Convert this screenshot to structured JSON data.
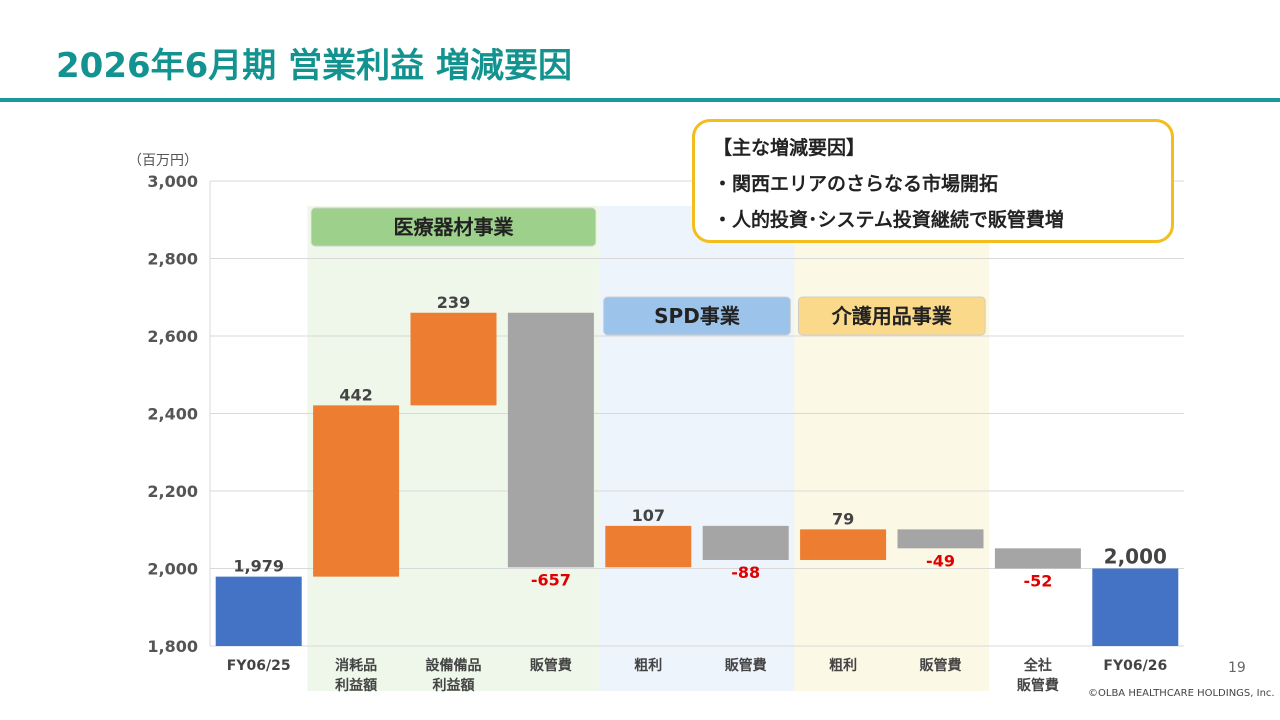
{
  "title": "2026年6月期 営業利益 増減要因",
  "unit_label": "（百万円）",
  "callout": {
    "heading": "【主な増減要因】",
    "items": [
      "・関西エリアのさらなる市場開拓",
      "・人的投資･システム投資継続で販管費増"
    ]
  },
  "page_number": "19",
  "copyright": "©OLBA HEALTHCARE HOLDINGS, Inc.",
  "segments": [
    {
      "label": "医療器材事業",
      "from": 1,
      "to": 3,
      "band_color": "#eef7e9",
      "header_color": "#9dd08a"
    },
    {
      "label": "SPD事業",
      "from": 4,
      "to": 5,
      "band_color": "#eef4fb",
      "header_color": "#9cc3ea"
    },
    {
      "label": "介護用品事業",
      "from": 6,
      "to": 7,
      "band_color": "#fcf8e6",
      "header_color": "#fbd98a"
    }
  ],
  "colors": {
    "total": "#4472c4",
    "increase": "#ed7d31",
    "decrease": "#a5a5a5",
    "negative_label": "#e00000",
    "grid": "#d9d9d9"
  },
  "chart_data": {
    "type": "waterfall",
    "categories": [
      [
        "FY06/25"
      ],
      [
        "消耗品",
        "利益額"
      ],
      [
        "設備備品",
        "利益額"
      ],
      [
        "販管費"
      ],
      [
        "粗利"
      ],
      [
        "販管費"
      ],
      [
        "粗利"
      ],
      [
        "販管費"
      ],
      [
        "全社",
        "販管費"
      ],
      [
        "FY06/26"
      ]
    ],
    "values": [
      1979,
      442,
      239,
      -657,
      107,
      -88,
      79,
      -49,
      -52,
      2000
    ],
    "value_labels": [
      "1,979",
      "442",
      "239",
      "-657",
      "107",
      "-88",
      "79",
      "-49",
      "-52",
      "2,000"
    ],
    "kinds": [
      "total",
      "increase",
      "increase",
      "decrease",
      "increase",
      "decrease",
      "increase",
      "decrease",
      "decrease",
      "total"
    ],
    "ylim": [
      1800,
      3000
    ],
    "yticks": [
      "1,800",
      "2,000",
      "2,200",
      "2,400",
      "2,600",
      "2,800",
      "3,000"
    ],
    "ytick_values": [
      1800,
      2000,
      2200,
      2400,
      2600,
      2800,
      3000
    ],
    "grid": true
  }
}
